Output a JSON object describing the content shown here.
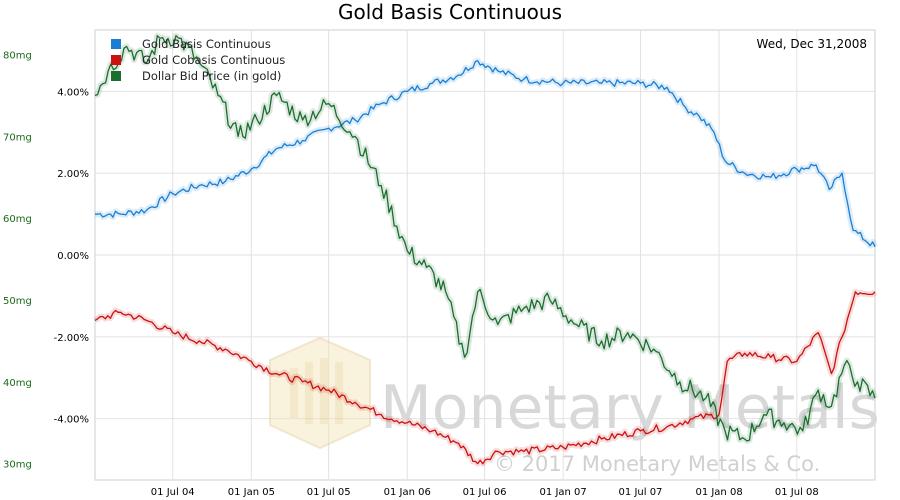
{
  "chart_data": {
    "type": "line",
    "title": "Gold Basis Continuous",
    "date_label": "Wed, Dec 31,2008",
    "x_ticks": [
      "01 Jul 04",
      "01 Jan 05",
      "01 Jul 05",
      "01 Jan 06",
      "01 Jul 06",
      "01 Jan 07",
      "01 Jul 07",
      "01 Jan 08",
      "01 Jul 08"
    ],
    "x_start": "2004-01-01",
    "x_end": "2008-12-31",
    "right_axis": {
      "ticks": [
        "-4.00%",
        "-2.00%",
        "0.00%",
        "2.00%",
        "4.00%"
      ],
      "tick_values": [
        -4,
        -2,
        0,
        2,
        4
      ],
      "min": -5.5,
      "max": 5.5
    },
    "left_axis": {
      "ticks": [
        "30mg",
        "40mg",
        "50mg",
        "60mg",
        "70mg",
        "80mg"
      ],
      "tick_values": [
        30,
        40,
        50,
        60,
        70,
        80
      ],
      "min": 28,
      "max": 83
    },
    "grid": true,
    "legend_position": "top-left",
    "series": [
      {
        "name": "Gold Basis Continuous",
        "color": "#1a7fd4",
        "axis": "right",
        "points": [
          [
            "2004-01-01",
            1.0
          ],
          [
            "2004-03-01",
            1.0
          ],
          [
            "2004-05-01",
            1.1
          ],
          [
            "2004-07-01",
            1.5
          ],
          [
            "2004-09-01",
            1.7
          ],
          [
            "2004-11-01",
            1.8
          ],
          [
            "2005-01-01",
            2.1
          ],
          [
            "2005-03-01",
            2.6
          ],
          [
            "2005-05-01",
            2.8
          ],
          [
            "2005-07-01",
            3.1
          ],
          [
            "2005-09-01",
            3.3
          ],
          [
            "2005-11-01",
            3.7
          ],
          [
            "2006-01-01",
            4.0
          ],
          [
            "2006-03-01",
            4.2
          ],
          [
            "2006-05-01",
            4.4
          ],
          [
            "2006-06-15",
            4.75
          ],
          [
            "2006-08-01",
            4.5
          ],
          [
            "2006-10-01",
            4.3
          ],
          [
            "2007-01-01",
            4.2
          ],
          [
            "2007-04-01",
            4.2
          ],
          [
            "2007-07-01",
            4.2
          ],
          [
            "2007-09-01",
            4.1
          ],
          [
            "2007-10-15",
            3.6
          ],
          [
            "2007-11-15",
            3.4
          ],
          [
            "2007-12-20",
            3.0
          ],
          [
            "2008-01-15",
            2.3
          ],
          [
            "2008-03-01",
            2.0
          ],
          [
            "2008-05-01",
            1.9
          ],
          [
            "2008-07-01",
            2.1
          ],
          [
            "2008-08-15",
            2.2
          ],
          [
            "2008-09-15",
            1.6
          ],
          [
            "2008-10-15",
            2.0
          ],
          [
            "2008-11-10",
            0.6
          ],
          [
            "2008-12-31",
            0.2
          ]
        ]
      },
      {
        "name": "Gold Cobasis Continuous",
        "color": "#cc1111",
        "axis": "right",
        "points": [
          [
            "2004-01-01",
            -1.6
          ],
          [
            "2004-03-01",
            -1.4
          ],
          [
            "2004-05-01",
            -1.6
          ],
          [
            "2004-07-01",
            -1.9
          ],
          [
            "2004-09-01",
            -2.1
          ],
          [
            "2004-11-01",
            -2.3
          ],
          [
            "2005-01-01",
            -2.6
          ],
          [
            "2005-03-01",
            -2.9
          ],
          [
            "2005-05-01",
            -3.1
          ],
          [
            "2005-07-01",
            -3.3
          ],
          [
            "2005-09-01",
            -3.6
          ],
          [
            "2005-11-01",
            -3.9
          ],
          [
            "2006-01-01",
            -4.1
          ],
          [
            "2006-03-01",
            -4.3
          ],
          [
            "2006-05-01",
            -4.6
          ],
          [
            "2006-06-15",
            -5.1
          ],
          [
            "2006-08-01",
            -4.8
          ],
          [
            "2006-10-01",
            -4.8
          ],
          [
            "2007-01-01",
            -4.7
          ],
          [
            "2007-04-01",
            -4.5
          ],
          [
            "2007-07-01",
            -4.3
          ],
          [
            "2007-09-01",
            -4.2
          ],
          [
            "2007-11-01",
            -4.0
          ],
          [
            "2008-01-01",
            -3.9
          ],
          [
            "2008-01-20",
            -2.6
          ],
          [
            "2008-03-01",
            -2.4
          ],
          [
            "2008-05-01",
            -2.5
          ],
          [
            "2008-07-01",
            -2.6
          ],
          [
            "2008-08-20",
            -1.9
          ],
          [
            "2008-09-20",
            -2.9
          ],
          [
            "2008-10-15",
            -2.0
          ],
          [
            "2008-11-15",
            -0.9
          ],
          [
            "2008-12-31",
            -0.9
          ]
        ]
      },
      {
        "name": "Dollar Bid Price (in gold)",
        "color": "#1a6e2e",
        "axis": "left",
        "points": [
          [
            "2004-01-01",
            75
          ],
          [
            "2004-02-01",
            78
          ],
          [
            "2004-03-15",
            81
          ],
          [
            "2004-05-01",
            79
          ],
          [
            "2004-06-01",
            82
          ],
          [
            "2004-07-15",
            82
          ],
          [
            "2004-09-01",
            79
          ],
          [
            "2004-10-15",
            75
          ],
          [
            "2004-12-01",
            70
          ],
          [
            "2005-01-15",
            72
          ],
          [
            "2005-03-01",
            75
          ],
          [
            "2005-05-01",
            72
          ],
          [
            "2005-07-01",
            74
          ],
          [
            "2005-09-01",
            70
          ],
          [
            "2005-11-01",
            64
          ],
          [
            "2006-01-01",
            56
          ],
          [
            "2006-02-15",
            54
          ],
          [
            "2006-04-01",
            51
          ],
          [
            "2006-05-15",
            43
          ],
          [
            "2006-06-15",
            51
          ],
          [
            "2006-08-01",
            47
          ],
          [
            "2006-10-01",
            49
          ],
          [
            "2006-12-01",
            50
          ],
          [
            "2007-02-01",
            47
          ],
          [
            "2007-04-01",
            45
          ],
          [
            "2007-06-01",
            46
          ],
          [
            "2007-08-01",
            44
          ],
          [
            "2007-10-01",
            40
          ],
          [
            "2007-12-01",
            38
          ],
          [
            "2008-01-15",
            34
          ],
          [
            "2008-03-01",
            33
          ],
          [
            "2008-04-15",
            36
          ],
          [
            "2008-06-01",
            35
          ],
          [
            "2008-07-15",
            34
          ],
          [
            "2008-08-20",
            39
          ],
          [
            "2008-09-20",
            37
          ],
          [
            "2008-10-20",
            42
          ],
          [
            "2008-11-20",
            40
          ],
          [
            "2008-12-31",
            38
          ]
        ]
      }
    ]
  },
  "watermark": {
    "brand": "Monetary Metals",
    "copyright": "© 2017 Monetary Metals & Co."
  }
}
